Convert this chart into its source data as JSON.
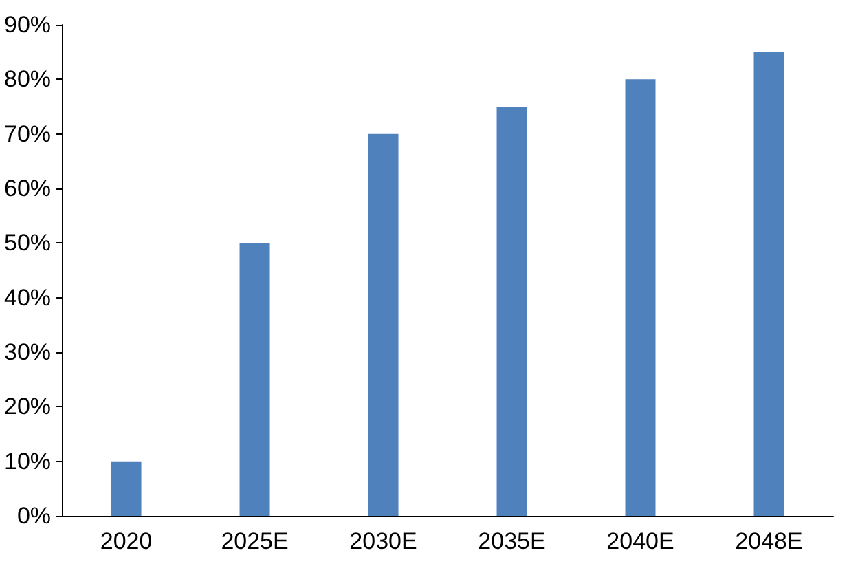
{
  "chart_data": {
    "type": "bar",
    "categories": [
      "2020",
      "2025E",
      "2030E",
      "2035E",
      "2040E",
      "2048E"
    ],
    "values": [
      10,
      50,
      70,
      75,
      80,
      85
    ],
    "color": "#4f81bd",
    "ylim": [
      0,
      90
    ],
    "yticks": [
      {
        "value": 0,
        "label": "0%"
      },
      {
        "value": 10,
        "label": "10%"
      },
      {
        "value": 20,
        "label": "20%"
      },
      {
        "value": 30,
        "label": "30%"
      },
      {
        "value": 40,
        "label": "40%"
      },
      {
        "value": 50,
        "label": "50%"
      },
      {
        "value": 60,
        "label": "60%"
      },
      {
        "value": 70,
        "label": "70%"
      },
      {
        "value": 80,
        "label": "80%"
      },
      {
        "value": 90,
        "label": "90%"
      }
    ],
    "grid": false
  }
}
